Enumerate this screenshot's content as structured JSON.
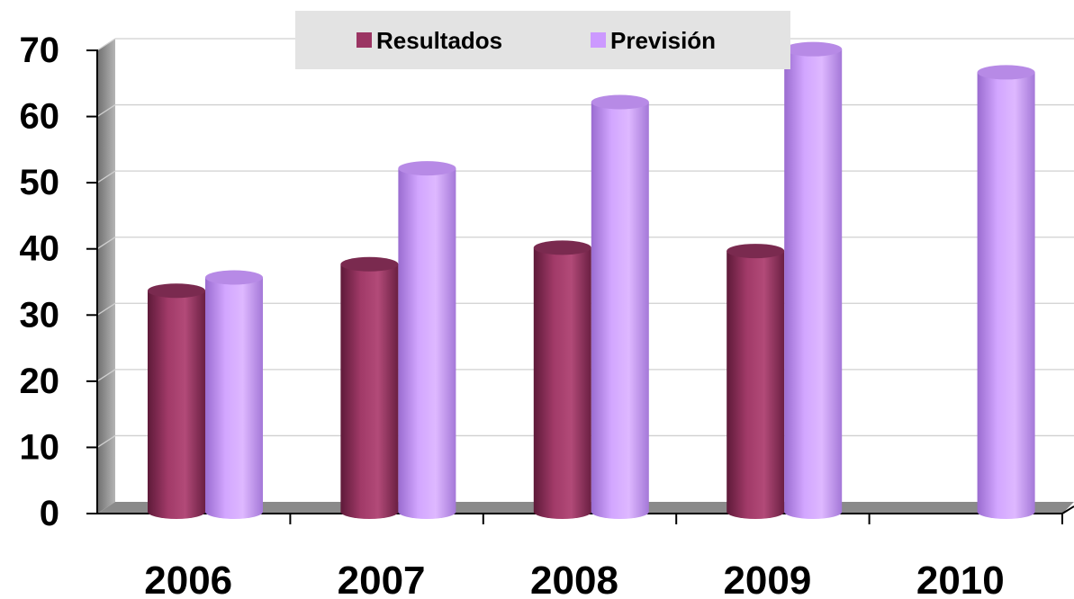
{
  "chart_data": {
    "type": "bar",
    "categories": [
      "2006",
      "2007",
      "2008",
      "2009",
      "2010"
    ],
    "series": [
      {
        "name": "Resultados",
        "values": [
          33,
          37,
          39.5,
          39,
          null
        ]
      },
      {
        "name": "Previsión",
        "values": [
          35,
          51.5,
          61.5,
          69.5,
          66
        ]
      }
    ],
    "ylim": [
      0,
      70
    ],
    "yticks": [
      "0",
      "10",
      "20",
      "30",
      "40",
      "50",
      "60",
      "70"
    ],
    "grid": true,
    "legend": "top",
    "three_d": true,
    "colors": {
      "Resultados": "#9b3563",
      "Previsión": "#cc99ff"
    }
  }
}
